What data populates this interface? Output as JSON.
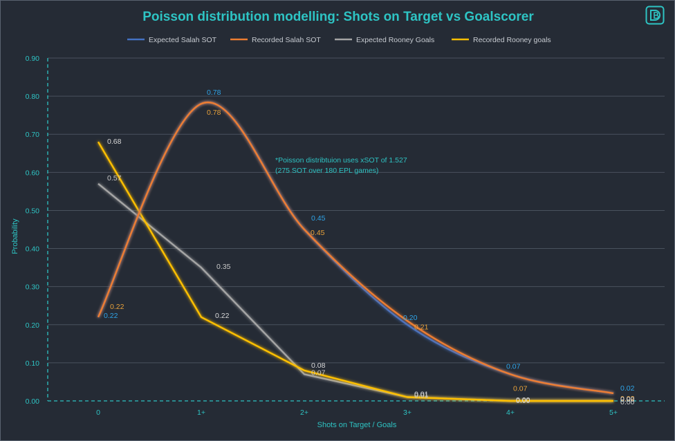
{
  "chart_data": {
    "type": "line",
    "title": "Poisson distribution  modelling: Shots on Target vs Goalscorer",
    "xlabel": "Shots on Target / Goals",
    "ylabel": "Probability",
    "categories": [
      "0",
      "1+",
      "2+",
      "3+",
      "4+",
      "5+"
    ],
    "ylim": [
      0,
      0.9
    ],
    "yticks": [
      "0.00",
      "0.10",
      "0.20",
      "0.30",
      "0.40",
      "0.50",
      "0.60",
      "0.70",
      "0.80",
      "0.90"
    ],
    "grid": true,
    "legend_position": "top",
    "series": [
      {
        "name": "Expected Salah SOT",
        "values": [
          0.22,
          0.78,
          0.45,
          0.2,
          0.07,
          0.02
        ],
        "color": "#4472c4",
        "label_color": "#2fa4e7",
        "smooth": true
      },
      {
        "name": "Recorded Salah SOT",
        "values": [
          0.22,
          0.78,
          0.45,
          0.21,
          0.07,
          0.02
        ],
        "color": "#ed7d31",
        "label_color": "#e8a13a",
        "smooth": true
      },
      {
        "name": "Expected Rooney Goals",
        "values": [
          0.57,
          0.35,
          0.07,
          0.01,
          0.0,
          0.0
        ],
        "color": "#a5a5a5",
        "label_color": "#c8c8c8",
        "smooth": false
      },
      {
        "name": "Recorded Rooney goals",
        "values": [
          0.68,
          0.22,
          0.08,
          0.01,
          0.0,
          0.0
        ],
        "color": "#ffc000",
        "label_color": "#d9d9d9",
        "smooth": false
      }
    ],
    "annotation": [
      "*Poisson distribtuion uses xSOT of 1.527",
      "(275 SOT over 180 EPL games)"
    ]
  },
  "colors": {
    "background": "#252b35",
    "title": "#2ec4c4",
    "axis_text": "#2ec4c4",
    "grid": "#4a525e",
    "legend_text": "#c8ccd2"
  },
  "logo_icon": "db-logo-icon"
}
